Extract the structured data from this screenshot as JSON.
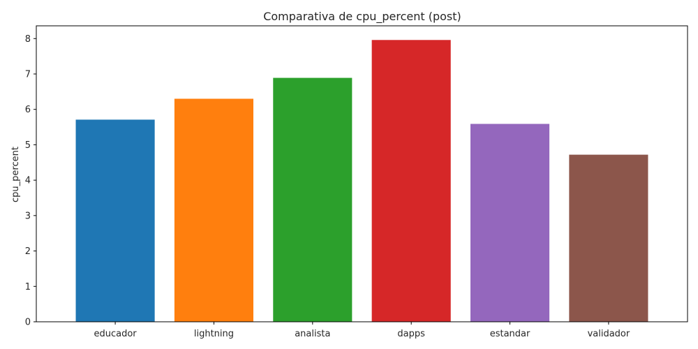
{
  "chart_data": {
    "type": "bar",
    "title": "Comparativa de cpu_percent (post)",
    "xlabel": "",
    "ylabel": "cpu_percent",
    "categories": [
      "educador",
      "lightning",
      "analista",
      "dapps",
      "estandar",
      "validador"
    ],
    "values": [
      5.71,
      6.3,
      6.89,
      7.96,
      5.59,
      4.72
    ],
    "colors": [
      "#1f77b4",
      "#ff7f0e",
      "#2ca02c",
      "#d62728",
      "#9467bd",
      "#8c564b"
    ],
    "ylim": [
      0,
      8.36
    ],
    "yticks": [
      0,
      1,
      2,
      3,
      4,
      5,
      6,
      7,
      8
    ],
    "grid": false,
    "legend": "none"
  }
}
